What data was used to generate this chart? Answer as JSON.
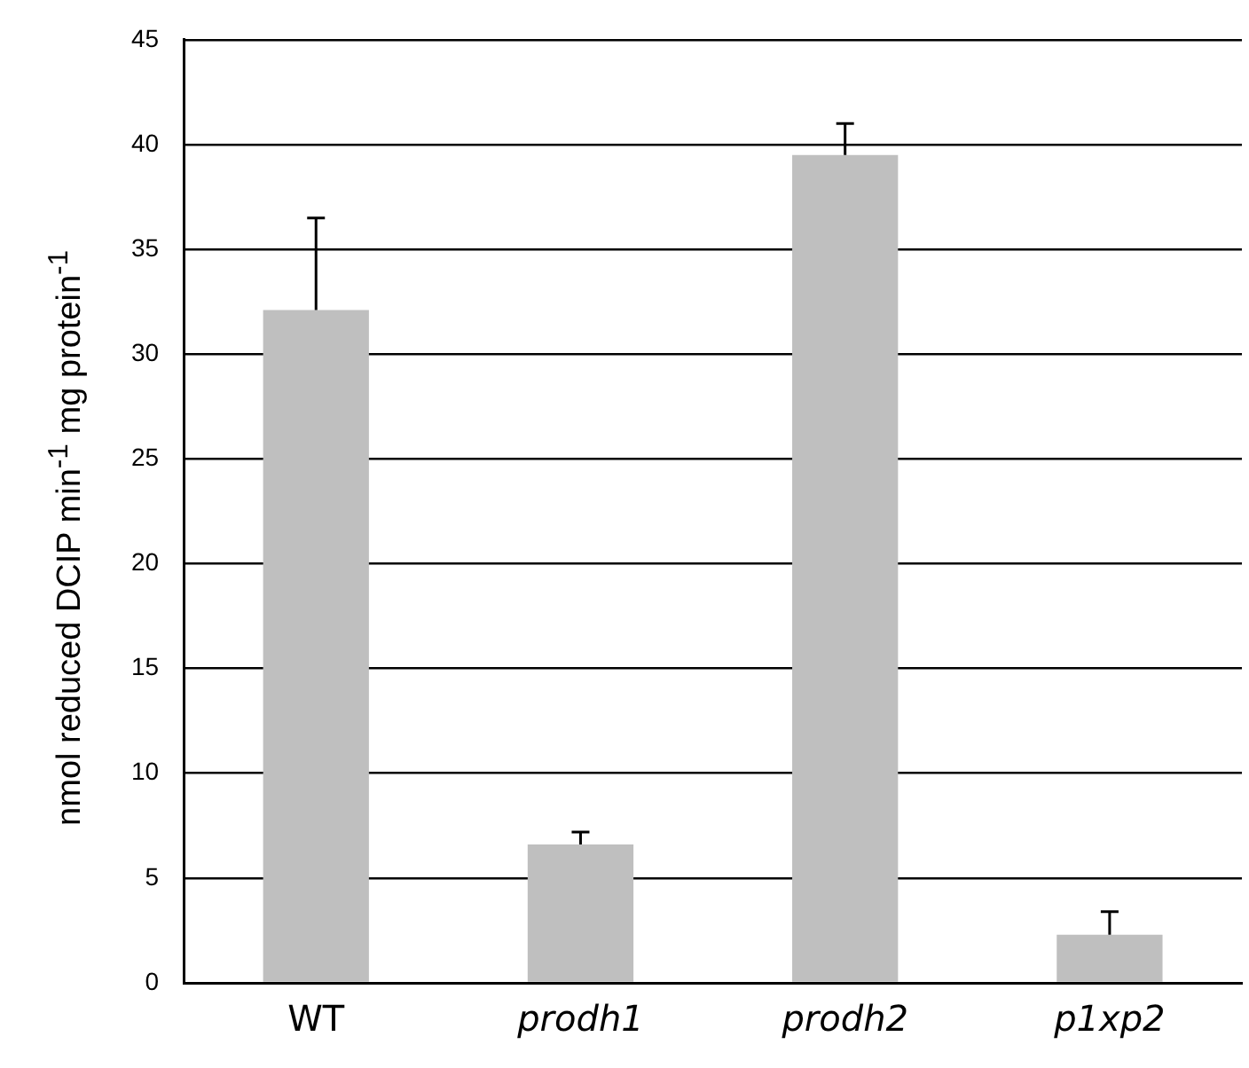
{
  "chart_data": {
    "type": "bar",
    "ylabel": "nmol reduced DCIP min$^{-1}$ mg protein$^{-1}$",
    "categories": [
      "WT",
      "prodh1",
      "prodh2",
      "p1xp2"
    ],
    "values": [
      32.1,
      6.6,
      39.5,
      2.3
    ],
    "errors": [
      [
        32.1,
        36.5
      ],
      [
        6.6,
        7.2
      ],
      [
        39.5,
        41.0
      ],
      [
        2.3,
        3.4
      ]
    ],
    "color": "#bfbfbf",
    "ylim": [
      0,
      45
    ],
    "yticks": [
      0,
      5,
      10,
      15,
      20,
      25,
      30,
      35,
      40,
      45
    ],
    "grid": "y",
    "legend": false
  }
}
